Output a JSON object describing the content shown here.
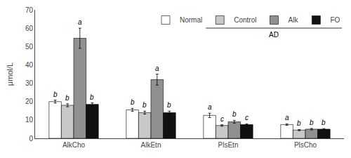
{
  "chart_data": {
    "type": "bar",
    "categories": [
      "AlkCho",
      "AlkEtn",
      "PlsEtn",
      "PlsCho"
    ],
    "series": [
      {
        "name": "Normal",
        "color": "#ffffff",
        "values": [
          20.0,
          15.5,
          12.5,
          7.5
        ],
        "errors": [
          0.8,
          0.8,
          1.2,
          0.4
        ],
        "letters": [
          "b",
          "b",
          "a",
          "a"
        ]
      },
      {
        "name": "Control",
        "color": "#c8c8c8",
        "values": [
          18.0,
          14.0,
          7.0,
          4.5
        ],
        "errors": [
          0.8,
          0.8,
          0.4,
          0.3
        ],
        "letters": [
          "b",
          "b",
          "c",
          "b"
        ]
      },
      {
        "name": "Alk",
        "color": "#909090",
        "values": [
          54.5,
          32.0,
          9.0,
          5.0
        ],
        "errors": [
          5.5,
          3.0,
          0.8,
          0.4
        ],
        "letters": [
          "a",
          "a",
          "b",
          "b"
        ]
      },
      {
        "name": "FO",
        "color": "#111111",
        "values": [
          18.5,
          14.0,
          7.5,
          5.0
        ],
        "errors": [
          0.8,
          0.8,
          0.4,
          0.3
        ],
        "letters": [
          "b",
          "b",
          "c",
          "b"
        ]
      }
    ],
    "ylabel": "μmol/L",
    "ylim": [
      0,
      70
    ],
    "yticks": [
      0,
      10,
      20,
      30,
      40,
      50,
      60,
      70
    ],
    "grid": false,
    "legend": "upper right",
    "annotations": [
      {
        "text": "AD",
        "series": [
          "Control",
          "Alk",
          "FO"
        ]
      }
    ]
  }
}
